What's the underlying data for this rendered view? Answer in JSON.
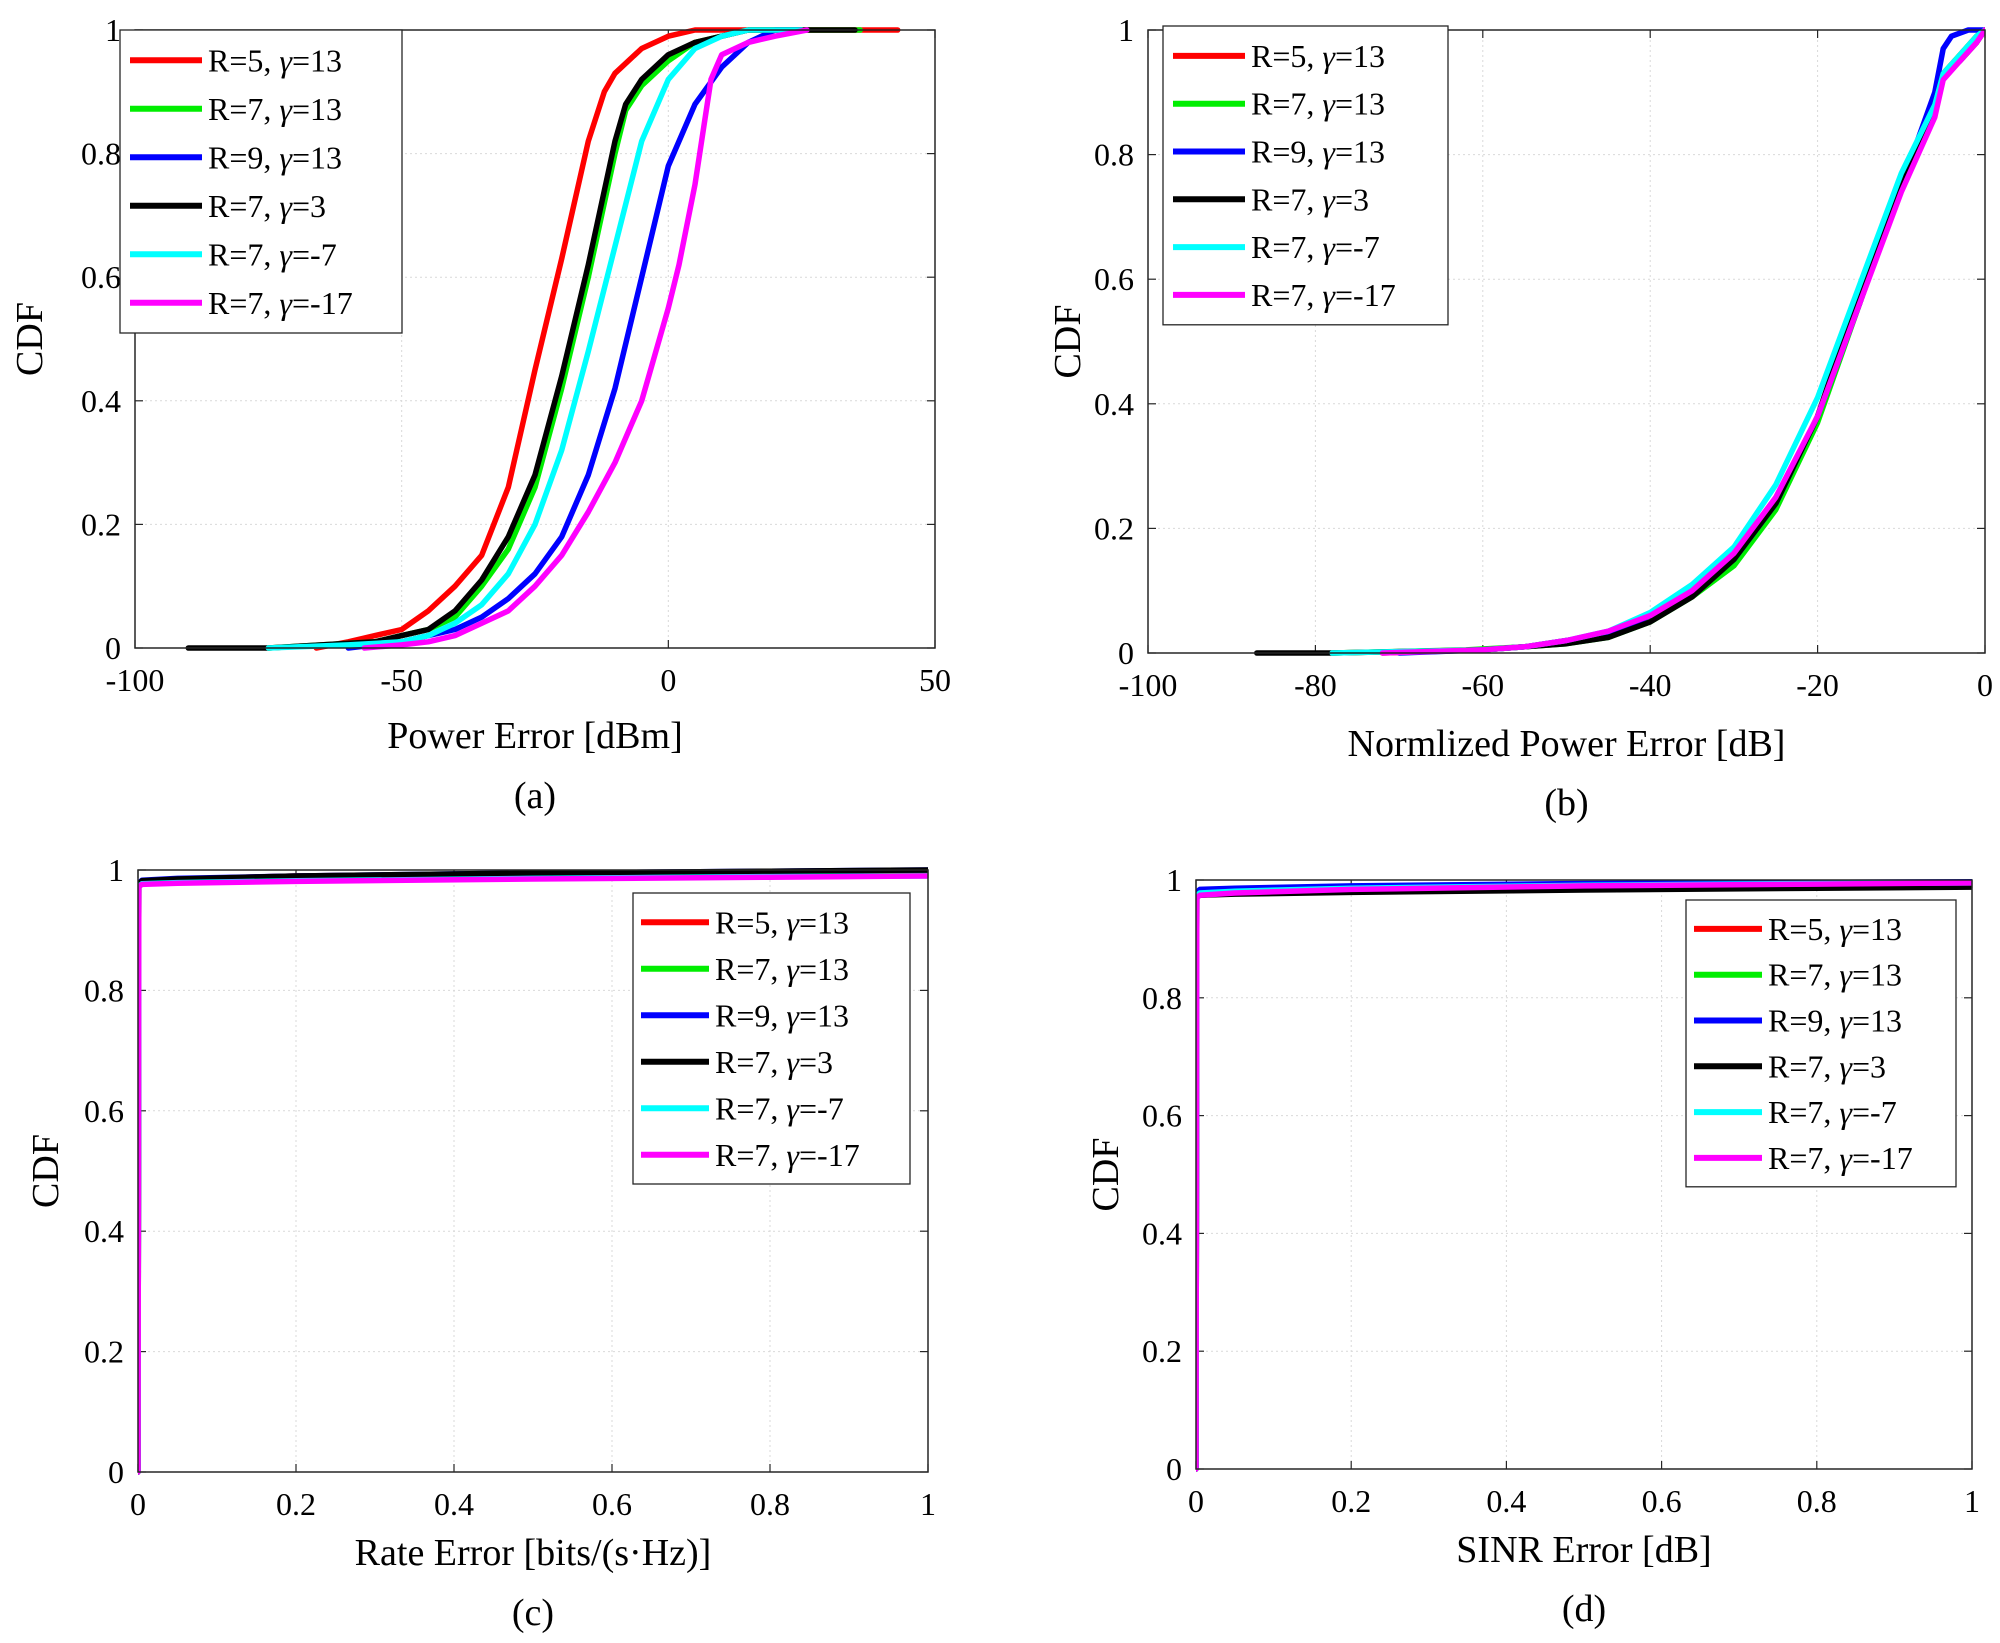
{
  "chart_data": [
    {
      "type": "line",
      "panel_label": "(a)",
      "xlabel": "Power Error [dBm]",
      "ylabel": "CDF",
      "xlim": [
        -100,
        50
      ],
      "ylim": [
        0,
        1
      ],
      "xticks": [
        -100,
        -50,
        0,
        50
      ],
      "yticks": [
        0,
        0.2,
        0.4,
        0.6,
        0.8,
        1
      ],
      "xtick_labels": [
        "-100",
        "-50",
        "0",
        "50"
      ],
      "ytick_labels": [
        "0",
        "0.2",
        "0.4",
        "0.6",
        "0.8",
        "1"
      ],
      "grid": true,
      "legend_position": "top-left",
      "series": [
        {
          "name": "R=5, γ=13",
          "prefix": "R=5, ",
          "symbol": "γ",
          "suffix": "=13",
          "color": "#ff0000",
          "x": [
            -66,
            -60,
            -55,
            -50,
            -45,
            -40,
            -35,
            -30,
            -25,
            -20,
            -15,
            -12,
            -10,
            -5,
            0,
            5,
            10,
            20,
            30,
            43
          ],
          "y": [
            0,
            0.01,
            0.02,
            0.03,
            0.06,
            0.1,
            0.15,
            0.26,
            0.45,
            0.63,
            0.82,
            0.9,
            0.93,
            0.97,
            0.99,
            1,
            1,
            1,
            1,
            1
          ]
        },
        {
          "name": "R=7, γ=13",
          "prefix": "R=7, ",
          "symbol": "γ",
          "suffix": "=13",
          "color": "#00ee00",
          "x": [
            -75,
            -65,
            -55,
            -50,
            -45,
            -40,
            -35,
            -30,
            -25,
            -20,
            -15,
            -10,
            -8,
            -5,
            0,
            5,
            10,
            15,
            20,
            36
          ],
          "y": [
            0,
            0.005,
            0.01,
            0.02,
            0.03,
            0.05,
            0.1,
            0.16,
            0.26,
            0.42,
            0.6,
            0.8,
            0.87,
            0.91,
            0.95,
            0.98,
            0.99,
            1,
            1,
            1
          ]
        },
        {
          "name": "R=9, γ=13",
          "prefix": "R=9, ",
          "symbol": "γ",
          "suffix": "=13",
          "color": "#0000ff",
          "x": [
            -60,
            -50,
            -45,
            -40,
            -35,
            -30,
            -25,
            -20,
            -15,
            -10,
            -5,
            0,
            5,
            10,
            15,
            20,
            25
          ],
          "y": [
            0,
            0.01,
            0.02,
            0.03,
            0.05,
            0.08,
            0.12,
            0.18,
            0.28,
            0.42,
            0.6,
            0.78,
            0.88,
            0.94,
            0.98,
            1,
            1
          ]
        },
        {
          "name": "R=7, γ=3",
          "prefix": "R=7, ",
          "symbol": "γ",
          "suffix": "=3",
          "color": "#000000",
          "x": [
            -90,
            -75,
            -65,
            -55,
            -50,
            -45,
            -40,
            -35,
            -30,
            -25,
            -20,
            -15,
            -10,
            -8,
            -5,
            0,
            5,
            10,
            15,
            20,
            35
          ],
          "y": [
            0,
            0,
            0.005,
            0.01,
            0.02,
            0.03,
            0.06,
            0.11,
            0.18,
            0.28,
            0.44,
            0.62,
            0.82,
            0.88,
            0.92,
            0.96,
            0.98,
            0.99,
            1,
            1,
            1
          ]
        },
        {
          "name": "R=7, γ=-7",
          "prefix": "R=7, ",
          "symbol": "γ",
          "suffix": "=-7",
          "color": "#00ffff",
          "x": [
            -75,
            -60,
            -50,
            -45,
            -40,
            -35,
            -30,
            -25,
            -20,
            -15,
            -10,
            -5,
            0,
            5,
            10,
            15,
            25
          ],
          "y": [
            0,
            0.005,
            0.01,
            0.02,
            0.04,
            0.07,
            0.12,
            0.2,
            0.32,
            0.48,
            0.65,
            0.82,
            0.92,
            0.97,
            0.99,
            1,
            1
          ]
        },
        {
          "name": "R=7, γ=-17",
          "prefix": "R=7, ",
          "symbol": "γ",
          "suffix": "=-17",
          "color": "#ff00ff",
          "x": [
            -57,
            -50,
            -45,
            -40,
            -35,
            -30,
            -25,
            -20,
            -15,
            -10,
            -5,
            0,
            2,
            5,
            8,
            10,
            15,
            20,
            26
          ],
          "y": [
            0,
            0.005,
            0.01,
            0.02,
            0.04,
            0.06,
            0.1,
            0.15,
            0.22,
            0.3,
            0.4,
            0.55,
            0.62,
            0.75,
            0.92,
            0.96,
            0.98,
            0.99,
            1
          ]
        }
      ]
    },
    {
      "type": "line",
      "panel_label": "(b)",
      "xlabel": "Normlized Power Error [dB]",
      "ylabel": "CDF",
      "xlim": [
        -100,
        0
      ],
      "ylim": [
        0,
        1
      ],
      "xticks": [
        -100,
        -80,
        -60,
        -40,
        -20,
        0
      ],
      "yticks": [
        0,
        0.2,
        0.4,
        0.6,
        0.8,
        1
      ],
      "xtick_labels": [
        "-100",
        "-80",
        "-60",
        "-40",
        "-20",
        "0"
      ],
      "ytick_labels": [
        "0",
        "0.2",
        "0.4",
        "0.6",
        "0.8",
        "1"
      ],
      "grid": true,
      "legend_position": "top-left",
      "series": [
        {
          "name": "R=5, γ=13",
          "prefix": "R=5, ",
          "symbol": "γ",
          "suffix": "=13",
          "color": "#ff0000",
          "x": [
            -72,
            -60,
            -55,
            -50,
            -45,
            -40,
            -35,
            -30,
            -25,
            -20,
            -15,
            -10,
            -6,
            -5,
            -3,
            -1,
            0
          ],
          "y": [
            0,
            0.005,
            0.01,
            0.02,
            0.03,
            0.06,
            0.1,
            0.15,
            0.24,
            0.38,
            0.56,
            0.75,
            0.88,
            0.93,
            0.96,
            0.99,
            1
          ]
        },
        {
          "name": "R=7, γ=13",
          "prefix": "R=7, ",
          "symbol": "γ",
          "suffix": "=13",
          "color": "#00ee00",
          "x": [
            -78,
            -62,
            -55,
            -50,
            -45,
            -40,
            -35,
            -30,
            -25,
            -20,
            -15,
            -10,
            -6,
            -5,
            -3,
            -1,
            0
          ],
          "y": [
            0,
            0.005,
            0.01,
            0.015,
            0.025,
            0.05,
            0.09,
            0.14,
            0.23,
            0.37,
            0.56,
            0.75,
            0.88,
            0.93,
            0.96,
            0.99,
            1
          ]
        },
        {
          "name": "R=9, γ=13",
          "prefix": "R=9, ",
          "symbol": "γ",
          "suffix": "=13",
          "color": "#0000ff",
          "x": [
            -70,
            -60,
            -55,
            -50,
            -45,
            -40,
            -35,
            -30,
            -25,
            -20,
            -15,
            -10,
            -6,
            -5,
            -4,
            -2,
            0
          ],
          "y": [
            0,
            0.005,
            0.01,
            0.02,
            0.03,
            0.06,
            0.1,
            0.15,
            0.24,
            0.38,
            0.56,
            0.75,
            0.9,
            0.97,
            0.99,
            1,
            1
          ]
        },
        {
          "name": "R=7, γ=3",
          "prefix": "R=7, ",
          "symbol": "γ",
          "suffix": "=3",
          "color": "#000000",
          "x": [
            -87,
            -78,
            -60,
            -55,
            -50,
            -45,
            -40,
            -35,
            -30,
            -25,
            -20,
            -15,
            -10,
            -6,
            -5,
            -3,
            -1,
            0
          ],
          "y": [
            0,
            0,
            0.005,
            0.01,
            0.015,
            0.025,
            0.05,
            0.09,
            0.15,
            0.24,
            0.38,
            0.58,
            0.76,
            0.88,
            0.93,
            0.95,
            0.98,
            1
          ]
        },
        {
          "name": "R=7, γ=-7",
          "prefix": "R=7, ",
          "symbol": "γ",
          "suffix": "=-7",
          "color": "#00ffff",
          "x": [
            -78,
            -60,
            -55,
            -50,
            -45,
            -40,
            -35,
            -30,
            -25,
            -20,
            -15,
            -10,
            -6,
            -5,
            -3,
            -1,
            0
          ],
          "y": [
            0,
            0.005,
            0.01,
            0.02,
            0.035,
            0.065,
            0.11,
            0.17,
            0.27,
            0.41,
            0.59,
            0.77,
            0.88,
            0.93,
            0.96,
            0.99,
            1
          ]
        },
        {
          "name": "R=7, γ=-17",
          "prefix": "R=7, ",
          "symbol": "γ",
          "suffix": "=-17",
          "color": "#ff00ff",
          "x": [
            -72,
            -60,
            -55,
            -50,
            -45,
            -40,
            -35,
            -30,
            -25,
            -20,
            -15,
            -10,
            -6,
            -5,
            -3,
            -1,
            0
          ],
          "y": [
            0,
            0.005,
            0.01,
            0.02,
            0.035,
            0.06,
            0.1,
            0.16,
            0.25,
            0.38,
            0.56,
            0.74,
            0.86,
            0.92,
            0.95,
            0.98,
            1
          ]
        }
      ]
    },
    {
      "type": "line",
      "panel_label": "(c)",
      "xlabel": "Rate Error [bits/(s·Hz)]",
      "ylabel": "CDF",
      "xlim": [
        0,
        1
      ],
      "ylim": [
        0,
        1
      ],
      "xticks": [
        0,
        0.2,
        0.4,
        0.6,
        0.8,
        1
      ],
      "yticks": [
        0,
        0.2,
        0.4,
        0.6,
        0.8,
        1
      ],
      "xtick_labels": [
        "0",
        "0.2",
        "0.4",
        "0.6",
        "0.8",
        "1"
      ],
      "ytick_labels": [
        "0",
        "0.2",
        "0.4",
        "0.6",
        "0.8",
        "1"
      ],
      "grid": true,
      "legend_position": "top-right",
      "series": [
        {
          "name": "R=5, γ=13",
          "prefix": "R=5, ",
          "symbol": "γ",
          "suffix": "=13",
          "color": "#ff0000",
          "x": [
            0,
            0.001,
            0.005,
            0.05,
            0.2,
            0.5,
            0.8,
            1
          ],
          "y": [
            0,
            0.975,
            0.982,
            0.985,
            0.99,
            0.994,
            0.996,
            0.997
          ]
        },
        {
          "name": "R=7, γ=13",
          "prefix": "R=7, ",
          "symbol": "γ",
          "suffix": "=13",
          "color": "#00ee00",
          "x": [
            0,
            0.001,
            0.005,
            0.05,
            0.2,
            0.5,
            0.8,
            1
          ],
          "y": [
            0,
            0.975,
            0.981,
            0.984,
            0.988,
            0.993,
            0.996,
            0.998
          ]
        },
        {
          "name": "R=9, γ=13",
          "prefix": "R=9, ",
          "symbol": "γ",
          "suffix": "=13",
          "color": "#0000ff",
          "x": [
            0,
            0.001,
            0.005,
            0.05,
            0.2,
            0.5,
            0.8,
            1
          ],
          "y": [
            0,
            0.978,
            0.983,
            0.986,
            0.99,
            0.995,
            0.998,
            1
          ]
        },
        {
          "name": "R=7, γ=3",
          "prefix": "R=7, ",
          "symbol": "γ",
          "suffix": "=3",
          "color": "#000000",
          "x": [
            0,
            0.001,
            0.005,
            0.05,
            0.2,
            0.5,
            0.8,
            1
          ],
          "y": [
            0,
            0.977,
            0.982,
            0.985,
            0.99,
            0.995,
            0.998,
            1
          ]
        },
        {
          "name": "R=7, γ=-7",
          "prefix": "R=7, ",
          "symbol": "γ",
          "suffix": "=-7",
          "color": "#00ffff",
          "x": [
            0,
            0.001,
            0.005,
            0.05,
            0.2,
            0.5,
            0.8,
            1
          ],
          "y": [
            0,
            0.973,
            0.977,
            0.979,
            0.982,
            0.986,
            0.989,
            0.99
          ]
        },
        {
          "name": "R=7, γ=-17",
          "prefix": "R=7, ",
          "symbol": "γ",
          "suffix": "=-17",
          "color": "#ff00ff",
          "x": [
            0,
            0.001,
            0.005,
            0.05,
            0.2,
            0.5,
            0.8,
            1
          ],
          "y": [
            0,
            0.972,
            0.976,
            0.978,
            0.981,
            0.985,
            0.988,
            0.99
          ]
        }
      ]
    },
    {
      "type": "line",
      "panel_label": "(d)",
      "xlabel": "SINR Error [dB]",
      "ylabel": "CDF",
      "xlim": [
        0,
        1
      ],
      "ylim": [
        0,
        1
      ],
      "xticks": [
        0,
        0.2,
        0.4,
        0.6,
        0.8,
        1
      ],
      "yticks": [
        0,
        0.2,
        0.4,
        0.6,
        0.8,
        1
      ],
      "xtick_labels": [
        "0",
        "0.2",
        "0.4",
        "0.6",
        "0.8",
        "1"
      ],
      "ytick_labels": [
        "0",
        "0.2",
        "0.4",
        "0.6",
        "0.8",
        "1"
      ],
      "grid": true,
      "legend_position": "top-right",
      "series": [
        {
          "name": "R=5, γ=13",
          "prefix": "R=5, ",
          "symbol": "γ",
          "suffix": "=13",
          "color": "#ff0000",
          "x": [
            0,
            0.001,
            0.005,
            0.05,
            0.2,
            0.5,
            0.8,
            1
          ],
          "y": [
            0,
            0.972,
            0.976,
            0.979,
            0.984,
            0.99,
            0.993,
            0.995
          ]
        },
        {
          "name": "R=7, γ=13",
          "prefix": "R=7, ",
          "symbol": "γ",
          "suffix": "=13",
          "color": "#00ee00",
          "x": [
            0,
            0.001,
            0.005,
            0.05,
            0.2,
            0.5,
            0.8,
            1
          ],
          "y": [
            0,
            0.972,
            0.976,
            0.979,
            0.985,
            0.99,
            0.993,
            0.995
          ]
        },
        {
          "name": "R=9, γ=13",
          "prefix": "R=9, ",
          "symbol": "γ",
          "suffix": "=13",
          "color": "#0000ff",
          "x": [
            0,
            0.001,
            0.005,
            0.05,
            0.2,
            0.5,
            0.8,
            1
          ],
          "y": [
            0,
            0.98,
            0.984,
            0.986,
            0.99,
            0.994,
            0.996,
            0.997
          ]
        },
        {
          "name": "R=7, γ=3",
          "prefix": "R=7, ",
          "symbol": "γ",
          "suffix": "=3",
          "color": "#000000",
          "x": [
            0,
            0.001,
            0.005,
            0.05,
            0.2,
            0.5,
            0.8,
            1
          ],
          "y": [
            0,
            0.972,
            0.974,
            0.976,
            0.979,
            0.983,
            0.986,
            0.988
          ]
        },
        {
          "name": "R=7, γ=-7",
          "prefix": "R=7, ",
          "symbol": "γ",
          "suffix": "=-7",
          "color": "#00ffff",
          "x": [
            0,
            0.001,
            0.005,
            0.05,
            0.2,
            0.5,
            0.8,
            1
          ],
          "y": [
            0,
            0.974,
            0.978,
            0.981,
            0.986,
            0.991,
            0.994,
            0.995
          ]
        },
        {
          "name": "R=7, γ=-17",
          "prefix": "R=7, ",
          "symbol": "γ",
          "suffix": "=-17",
          "color": "#ff00ff",
          "x": [
            0,
            0.001,
            0.005,
            0.05,
            0.2,
            0.5,
            0.8,
            1
          ],
          "y": [
            0,
            0.97,
            0.974,
            0.978,
            0.984,
            0.99,
            0.993,
            0.995
          ]
        }
      ]
    }
  ]
}
